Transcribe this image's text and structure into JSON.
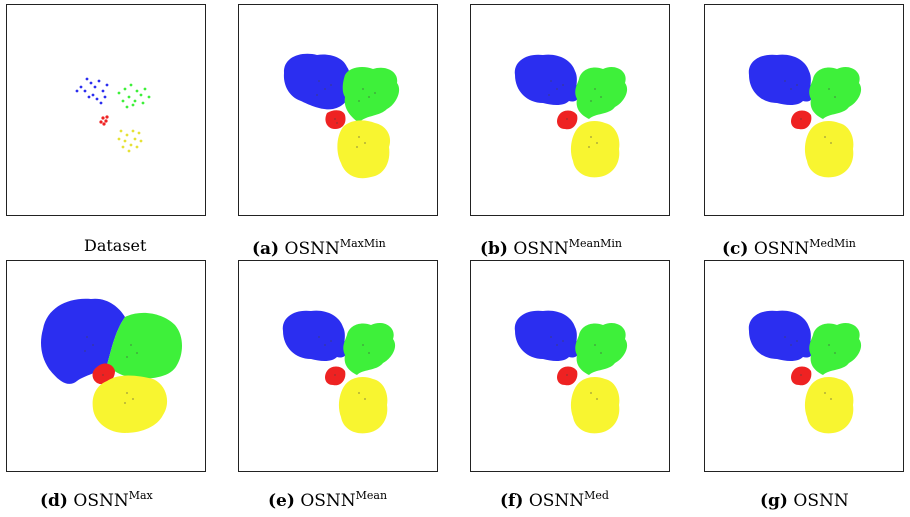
{
  "colors": {
    "blue": "#2b2ef0",
    "green": "#3ef03a",
    "red": "#ee2222",
    "yellow": "#f8f530",
    "frame": "#222222"
  },
  "panels": [
    {
      "id": "dataset",
      "tag": "",
      "name": "Dataset",
      "sup": ""
    },
    {
      "id": "a",
      "tag": "(a)",
      "name": "OSNN",
      "sup": "MaxMin"
    },
    {
      "id": "b",
      "tag": "(b)",
      "name": "OSNN",
      "sup": "MeanMin"
    },
    {
      "id": "c",
      "tag": "(c)",
      "name": "OSNN",
      "sup": "MedMin"
    },
    {
      "id": "d",
      "tag": "(d)",
      "name": "OSNN",
      "sup": "Max"
    },
    {
      "id": "e",
      "tag": "(e)",
      "name": "OSNN",
      "sup": "Mean"
    },
    {
      "id": "f",
      "tag": "(f)",
      "name": "OSNN",
      "sup": "Med"
    },
    {
      "id": "g",
      "tag": "(g)",
      "name": "OSNN",
      "sup": ""
    }
  ]
}
